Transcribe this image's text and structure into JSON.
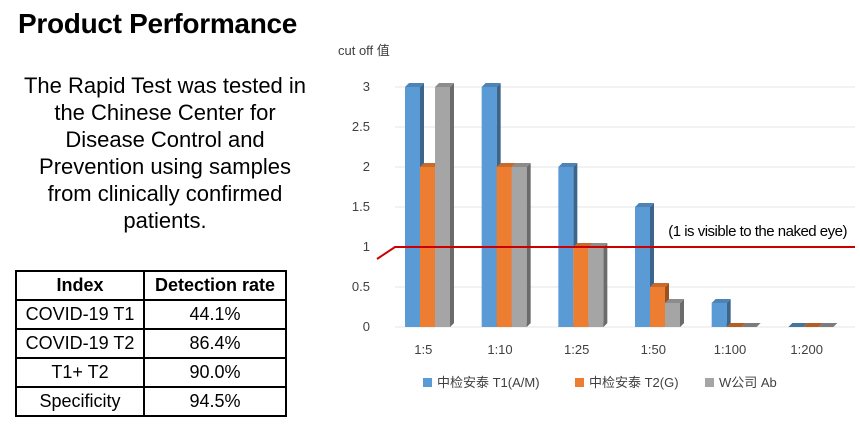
{
  "heading": "Product Performance",
  "description": "The Rapid Test was tested in the Chinese Center for Disease Control and Prevention using samples from clinically confirmed patients.",
  "table": {
    "headers": [
      "Index",
      "Detection rate"
    ],
    "rows": [
      {
        "metric": "COVID-19 T1",
        "rate": "44.1%"
      },
      {
        "metric": "COVID-19 T2",
        "rate": "86.4%"
      },
      {
        "metric": "T1+ T2",
        "rate": "90.0%"
      },
      {
        "metric": "Specificity",
        "rate": "94.5%"
      }
    ]
  },
  "chart_data": {
    "type": "bar",
    "title": "",
    "ylabel": "cut off 值",
    "xlabel": "",
    "categories": [
      "1:5",
      "1:10",
      "1:25",
      "1:50",
      "1:100",
      "1:200"
    ],
    "series": [
      {
        "name": "中检安泰 T1(A/M)",
        "values": [
          3,
          3,
          2,
          1.5,
          0.3,
          0
        ],
        "color": "#5b9bd5"
      },
      {
        "name": "中检安泰 T2(G)",
        "values": [
          2,
          2,
          1,
          0.5,
          0,
          0
        ],
        "color": "#ed7d31"
      },
      {
        "name": "W公司 Ab",
        "values": [
          3,
          2,
          1,
          0.3,
          0,
          0
        ],
        "color": "#a5a5a5"
      }
    ],
    "ylim": [
      0,
      3
    ],
    "yticks": [
      "0",
      "0.5",
      "1",
      "1.5",
      "2",
      "2.5",
      "3"
    ],
    "threshold": {
      "value": 1,
      "label": "(1 is visible to the naked eye)",
      "color": "#cc0000"
    },
    "legend_position": "bottom",
    "grid": true
  }
}
